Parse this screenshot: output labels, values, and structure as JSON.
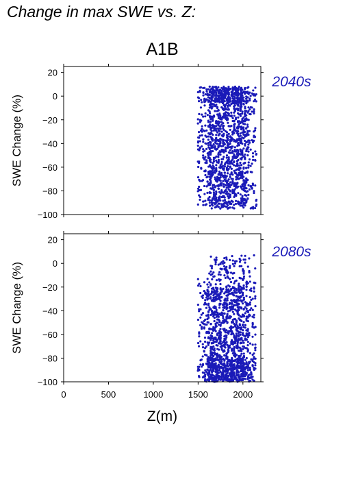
{
  "figure": {
    "title": "Change in max SWE vs. Z:",
    "scenario": "A1B",
    "xlabel": "Z(m)",
    "ylabel": "SWE Change (%)",
    "marker_color": "#1a1ab8",
    "period_label_color": "#1a1ab8"
  },
  "chart_data": [
    {
      "type": "scatter",
      "period": "2040s",
      "xlabel": "",
      "ylabel": "SWE Change (%)",
      "xlim": [
        0,
        2200
      ],
      "ylim": [
        -100,
        25
      ],
      "xticks": [
        0,
        500,
        1000,
        1500,
        2000
      ],
      "yticks": [
        20,
        0,
        -20,
        -40,
        -60,
        -80,
        -100
      ],
      "x_tick_labels_shown": false,
      "elevation_range_m": [
        1500,
        2150
      ],
      "swe_change_range_pct": [
        -100,
        8
      ],
      "points_description": "dense vertical columns of points between ~1500 and ~2150 m, values mostly -95 to +7 %"
    },
    {
      "type": "scatter",
      "period": "2080s",
      "xlabel": "Z(m)",
      "ylabel": "SWE Change (%)",
      "xlim": [
        0,
        2200
      ],
      "ylim": [
        -100,
        25
      ],
      "xticks": [
        0,
        500,
        1000,
        1500,
        2000
      ],
      "yticks": [
        20,
        0,
        -20,
        -40,
        -60,
        -80,
        -100
      ],
      "x_tick_labels_shown": true,
      "elevation_range_m": [
        1500,
        2150
      ],
      "swe_change_range_pct": [
        -100,
        7
      ],
      "points_description": "dense columns between ~1500 and ~2150 m, heavily concentrated from -20 to -100 %, sparse points up to +7 %"
    }
  ]
}
